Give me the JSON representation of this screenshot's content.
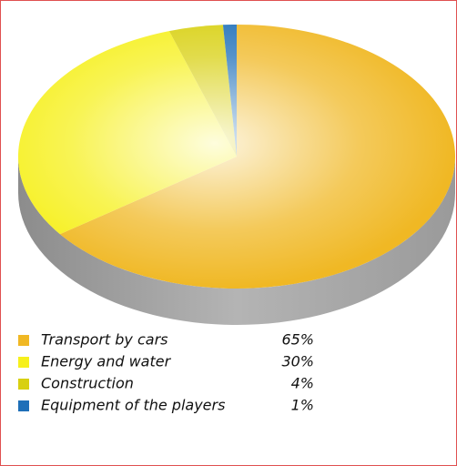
{
  "chart_data": {
    "type": "pie",
    "categories": [
      "Transport by cars",
      "Energy and water",
      "Construction",
      "Equipment of the players"
    ],
    "values": [
      65,
      30,
      4,
      1
    ],
    "value_labels": [
      "65%",
      "30%",
      "4%",
      "1%"
    ],
    "colors": [
      "#f0b824",
      "#f6f01c",
      "#d8d010",
      "#1e6fb8"
    ],
    "start_angle": 90,
    "direction": "clockwise"
  }
}
